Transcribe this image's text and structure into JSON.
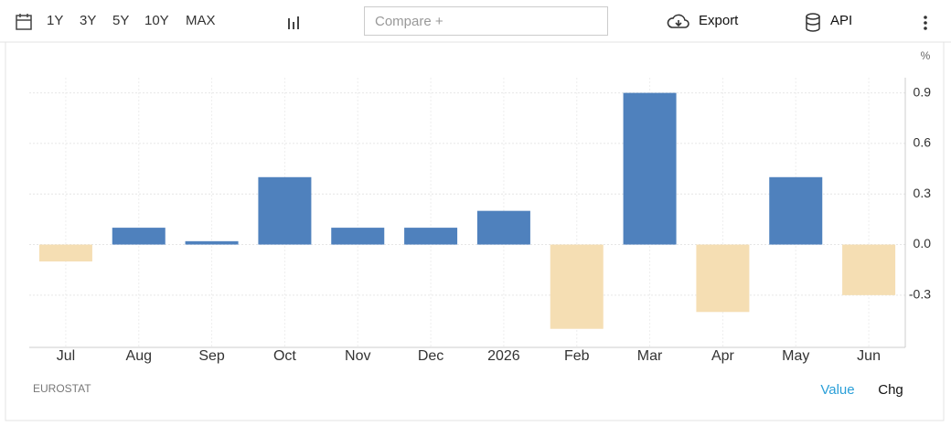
{
  "toolbar": {
    "ranges": [
      "1Y",
      "3Y",
      "5Y",
      "10Y",
      "MAX"
    ],
    "compare_placeholder": "Compare +",
    "export": "Export",
    "api": "API"
  },
  "chart_data": {
    "type": "bar",
    "unit": "%",
    "source": "EUROSTAT",
    "categories": [
      "Jul",
      "Aug",
      "Sep",
      "Oct",
      "Nov",
      "Dec",
      "2026",
      "Feb",
      "Mar",
      "Apr",
      "May",
      "Jun"
    ],
    "values": [
      -0.1,
      0.1,
      0.02,
      0.4,
      0.1,
      0.1,
      0.2,
      -0.5,
      0.9,
      -0.4,
      0.4,
      -0.3
    ],
    "positive_color": "#4f81bd",
    "negative_color": "#f5deb3",
    "ylim": [
      -0.61,
      0.99
    ],
    "yticks": [
      0.9,
      0.6,
      0.3,
      {
        "value": 0,
        "label": "0.0"
      },
      -0.3
    ],
    "grid": true,
    "tabs": [
      "Value",
      "Chg"
    ],
    "active_tab_color": "#2a9fd8"
  }
}
